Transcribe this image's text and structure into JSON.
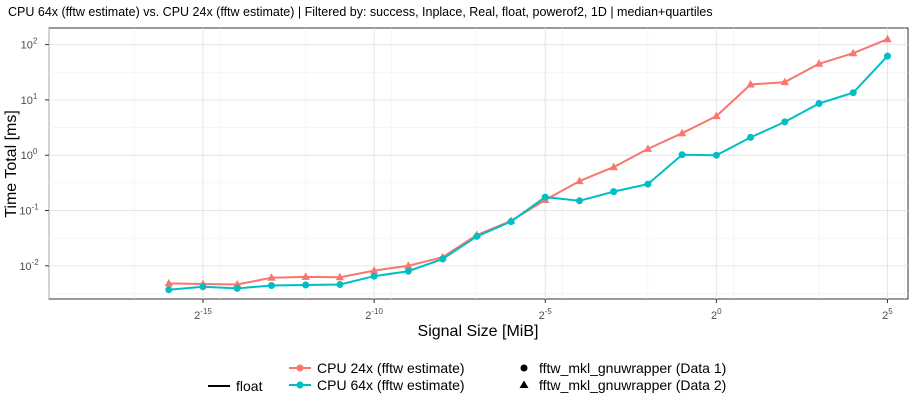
{
  "chart_data": {
    "type": "line",
    "title": "CPU 64x (fftw estimate) vs. CPU 24x (fftw estimate) | Filtered by: success, Inplace, Real, float, powerof2, 1D | median+quartiles",
    "xlabel": "Signal Size [MiB]",
    "ylabel": "Time Total [ms]",
    "x_scale": "log2",
    "y_scale": "log10",
    "xlim_log2": [
      -19.5,
      5.6
    ],
    "ylim_log10": [
      -2.6,
      2.3
    ],
    "x_ticks": [
      {
        "base": "2",
        "exp": "-15",
        "log2": -15
      },
      {
        "base": "2",
        "exp": "-10",
        "log2": -10
      },
      {
        "base": "2",
        "exp": "-5",
        "log2": -5
      },
      {
        "base": "2",
        "exp": "0",
        "log2": 0
      },
      {
        "base": "2",
        "exp": "5",
        "log2": 5
      }
    ],
    "y_ticks": [
      {
        "base": "10",
        "exp": "-2",
        "log10": -2
      },
      {
        "base": "10",
        "exp": "-1",
        "log10": -1
      },
      {
        "base": "10",
        "exp": "0",
        "log10": 0
      },
      {
        "base": "10",
        "exp": "1",
        "log10": 1
      },
      {
        "base": "10",
        "exp": "2",
        "log10": 2
      }
    ],
    "grid": true,
    "legend_position": "bottom",
    "x_log2": [
      -16,
      -15,
      -14,
      -13,
      -12,
      -11,
      -10,
      -9,
      -8,
      -7,
      -6,
      -5,
      -4,
      -3,
      -2,
      -1,
      0,
      1,
      2,
      3,
      4,
      5
    ],
    "series": [
      {
        "name": "CPU 24x (fftw estimate)",
        "color": "#F8766D",
        "marker": "triangle",
        "marker_label": "fftw_mkl_gnuwrapper (Data 2)",
        "values": [
          0.0048,
          0.0047,
          0.0046,
          0.0061,
          0.0063,
          0.0062,
          0.0082,
          0.01,
          0.0143,
          0.036,
          0.065,
          0.155,
          0.34,
          0.61,
          1.3,
          2.5,
          5.1,
          19.0,
          21.0,
          45.0,
          70.0,
          125.0
        ]
      },
      {
        "name": "CPU 64x (fftw estimate)",
        "color": "#00BFC4",
        "marker": "circle",
        "marker_label": "fftw_mkl_gnuwrapper (Data 1)",
        "values": [
          0.0037,
          0.0042,
          0.0039,
          0.0044,
          0.0045,
          0.0046,
          0.0065,
          0.008,
          0.0133,
          0.034,
          0.063,
          0.175,
          0.15,
          0.22,
          0.3,
          1.02,
          1.0,
          2.1,
          4.0,
          8.6,
          13.5,
          62.0
        ]
      }
    ]
  },
  "legend": {
    "linetype_label": "float",
    "color_items": [
      "CPU 24x (fftw estimate)",
      "CPU 64x (fftw estimate)"
    ],
    "shape_items": [
      "fftw_mkl_gnuwrapper (Data 1)",
      "fftw_mkl_gnuwrapper (Data 2)"
    ]
  }
}
